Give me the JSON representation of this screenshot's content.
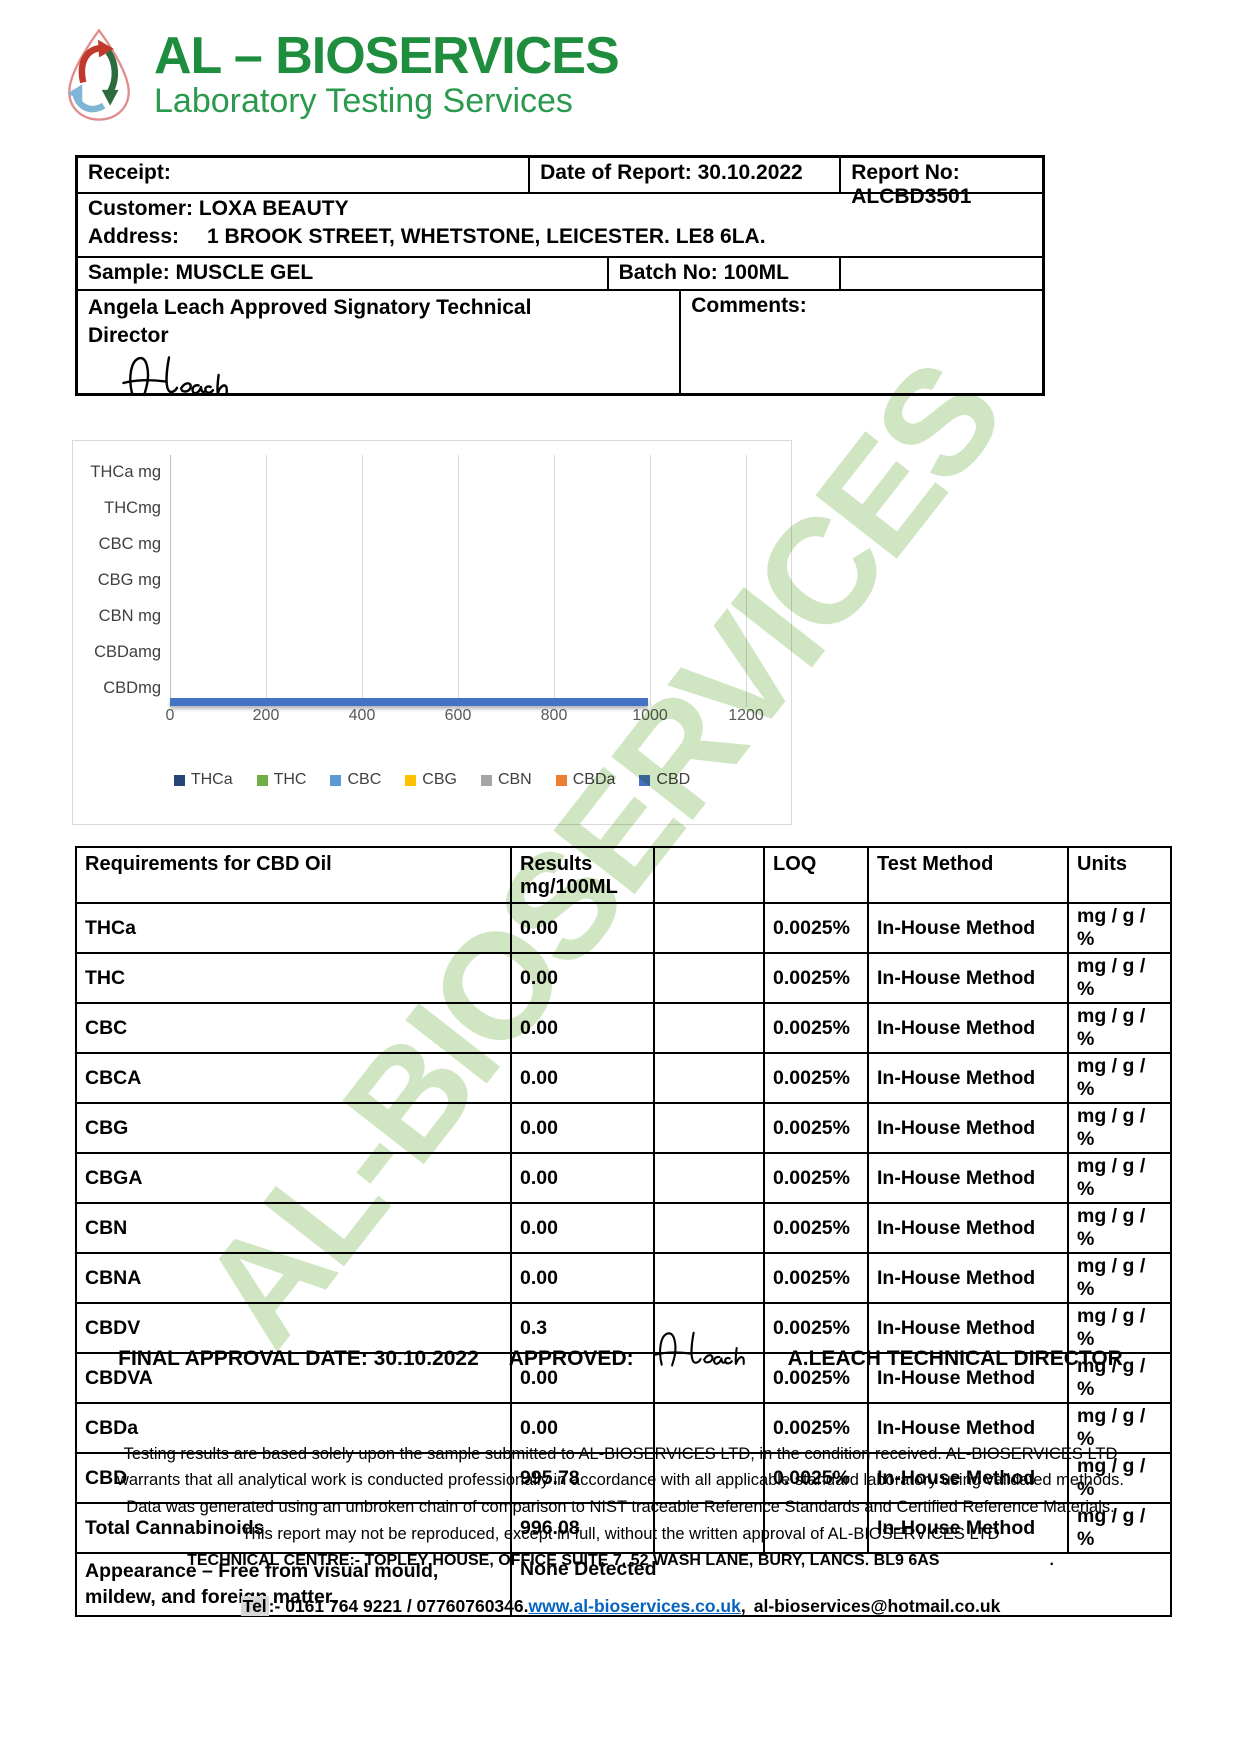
{
  "logo": {
    "title": "AL – BIOSERVICES",
    "subtitle": "Laboratory Testing Services"
  },
  "header": {
    "receipt_label": "Receipt:",
    "date_of_report": "Date of Report: 30.10.2022",
    "report_no": "Report No: ALCBD3501",
    "customer": "Customer: LOXA BEAUTY",
    "address_label": "Address:",
    "address_value": "1 BROOK STREET, WHETSTONE, LEICESTER. LE8 6LA.",
    "sample": "Sample: MUSCLE GEL",
    "batch_no": "Batch No: 100ML",
    "signatory": "Angela Leach Approved Signatory Technical Director",
    "comments_label": "Comments:"
  },
  "chart_data": {
    "type": "bar",
    "orientation": "horizontal",
    "categories": [
      "THCa mg",
      "THCmg",
      "CBC mg",
      "CBG mg",
      "CBN mg",
      "CBDamg",
      "CBDmg"
    ],
    "values": [
      0,
      0,
      0,
      0,
      0,
      0,
      995.78
    ],
    "title": "",
    "xlabel": "",
    "ylabel": "",
    "xlim": [
      0,
      1200
    ],
    "xticks": [
      0,
      200,
      400,
      600,
      800,
      1000,
      1200
    ],
    "grid": true,
    "bar_color": "#4472c4",
    "legend_position": "bottom",
    "legend": [
      {
        "label": "THCa",
        "color": "#264478"
      },
      {
        "label": "THC",
        "color": "#70ad47"
      },
      {
        "label": "CBC",
        "color": "#5b9bd5"
      },
      {
        "label": "CBG",
        "color": "#ffc000"
      },
      {
        "label": "CBN",
        "color": "#a5a5a5"
      },
      {
        "label": "CBDa",
        "color": "#ed7d31"
      },
      {
        "label": "CBD",
        "color": "#4472c4"
      }
    ]
  },
  "results_table": {
    "headers": {
      "requirements": "Requirements for CBD Oil",
      "results_line1": "Results",
      "results_line2": "mg/100ML",
      "loq": "LOQ",
      "test_method": "Test Method",
      "units": "Units"
    },
    "rows": [
      {
        "name": "THCa",
        "result": "0.00",
        "loq": "0.0025%",
        "method": "In-House Method",
        "units": "mg / g / %"
      },
      {
        "name": "THC",
        "result": "0.00",
        "loq": "0.0025%",
        "method": "In-House Method",
        "units": "mg / g / %"
      },
      {
        "name": "CBC",
        "result": "0.00",
        "loq": "0.0025%",
        "method": "In-House Method",
        "units": "mg / g / %"
      },
      {
        "name": "CBCA",
        "result": "0.00",
        "loq": "0.0025%",
        "method": "In-House Method",
        "units": "mg / g / %"
      },
      {
        "name": "CBG",
        "result": "0.00",
        "loq": "0.0025%",
        "method": "In-House Method",
        "units": "mg / g / %"
      },
      {
        "name": "CBGA",
        "result": "0.00",
        "loq": "0.0025%",
        "method": "In-House Method",
        "units": "mg / g / %"
      },
      {
        "name": "CBN",
        "result": "0.00",
        "loq": "0.0025%",
        "method": "In-House Method",
        "units": "mg / g / %"
      },
      {
        "name": "CBNA",
        "result": "0.00",
        "loq": "0.0025%",
        "method": "In-House Method",
        "units": "mg / g / %"
      },
      {
        "name": "CBDV",
        "result": "0.3",
        "loq": "0.0025%",
        "method": "In-House Method",
        "units": "mg / g / %"
      },
      {
        "name": "CBDVA",
        "result": "0.00",
        "loq": "0.0025%",
        "method": "In-House Method",
        "units": "mg / g / %"
      },
      {
        "name": "CBDa",
        "result": "0.00",
        "loq": "0.0025%",
        "method": "In-House Method",
        "units": "mg / g / %"
      },
      {
        "name": "CBD",
        "result": "995.78",
        "loq": "0.0025%",
        "method": "In-House Method",
        "units": "mg / g / %"
      },
      {
        "name": "Total Cannabinoids",
        "result": "996.08",
        "loq": "",
        "method": "In-House Method",
        "units": "mg / g / %"
      }
    ],
    "appearance_row": {
      "label": "Appearance – Free from visual mould, mildew, and foreign matter.",
      "value": "None Detected"
    }
  },
  "approval": {
    "final_label": "FINAL APPROVAL DATE: 30.10.2022",
    "approved_label": "APPROVED:",
    "approver": "A.LEACH TECHNICAL DIRECTOR"
  },
  "disclaimer": "Testing results are based solely upon the sample submitted to AL-BIOSERVICES LTD, in the condition received. AL-BIOSERVICES LTD warrants that all analytical work is conducted professionally in accordance with all applicable standard laboratory using validated methods. Data was generated using an unbroken chain of comparison to NIST traceable Reference Standards and Certified Reference Materials. This report may not be reproduced, except in full, without the written approval of AL-BIOSERVICES LTD",
  "footer": {
    "technical_centre": "TECHNICAL CENTRE:- TOPLEY HOUSE, OFFICE SUITE 7, 52 WASH LANE, BURY, LANCS. BL9 6AS",
    "trailing_dot": ".",
    "tel_label": "Tel",
    "tel_numbers": ":- 0161 764 9221 / 07760760346.",
    "website": "www.al-bioservices.co.uk",
    "separator": ",",
    "email": "al-bioservices@hotmail.co.uk"
  },
  "watermark": {
    "text": "AL-BIOSERVICES",
    "color": "#a9d08e"
  }
}
